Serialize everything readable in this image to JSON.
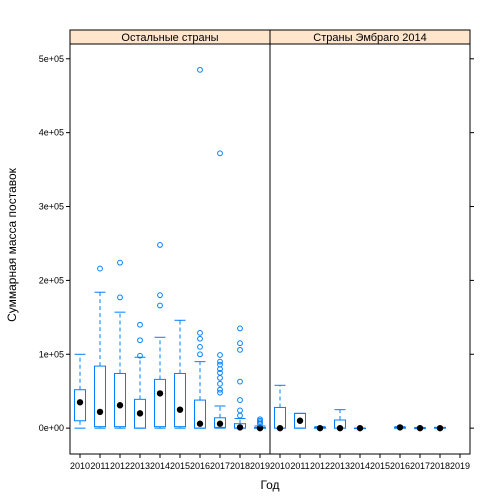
{
  "chart_data": {
    "type": "box",
    "xlabel": "Год",
    "ylabel": "Суммарная масса поставок",
    "ylim": [
      -35000,
      520000
    ],
    "yticks": [
      0,
      100000,
      200000,
      300000,
      400000,
      500000
    ],
    "ytick_labels": [
      "0e+00",
      "1e+05",
      "2e+05",
      "3e+05",
      "4e+05",
      "5e+05"
    ],
    "categories": [
      "2010",
      "2011",
      "2012",
      "2013",
      "2014",
      "2015",
      "2016",
      "2017",
      "2018",
      "2019"
    ],
    "colors": {
      "box": "#0080ff",
      "strip": "#ffe5cc",
      "median": "#000000",
      "frame": "#000000"
    },
    "panels": [
      {
        "strip": "Остальные страны",
        "boxes": [
          {
            "x": "2010",
            "lower": 0,
            "q1": 10000,
            "median": 35000,
            "q3": 52000,
            "upper": 100000,
            "outliers": []
          },
          {
            "x": "2011",
            "lower": 0,
            "q1": 2000,
            "median": 22000,
            "q3": 84000,
            "upper": 184000,
            "outliers": [
              216000
            ]
          },
          {
            "x": "2012",
            "lower": 0,
            "q1": 2000,
            "median": 31000,
            "q3": 74000,
            "upper": 157000,
            "outliers": [
              177000,
              224000
            ]
          },
          {
            "x": "2013",
            "lower": 0,
            "q1": 0,
            "median": 20000,
            "q3": 39000,
            "upper": 96000,
            "outliers": [
              98000,
              119000,
              140000
            ]
          },
          {
            "x": "2014",
            "lower": 0,
            "q1": 2000,
            "median": 47000,
            "q3": 66000,
            "upper": 123000,
            "outliers": [
              166000,
              180000,
              248000
            ]
          },
          {
            "x": "2015",
            "lower": 0,
            "q1": 2000,
            "median": 25000,
            "q3": 74000,
            "upper": 146000,
            "outliers": []
          },
          {
            "x": "2016",
            "lower": 0,
            "q1": 0,
            "median": 6000,
            "q3": 38000,
            "upper": 90000,
            "outliers": [
              100000,
              110000,
              121000,
              129000,
              485000
            ]
          },
          {
            "x": "2017",
            "lower": 0,
            "q1": 1000,
            "median": 6000,
            "q3": 14000,
            "upper": 30000,
            "outliers": [
              48000,
              52000,
              60000,
              68000,
              75000,
              80000,
              86000,
              90000,
              99000,
              372000
            ]
          },
          {
            "x": "2018",
            "lower": 0,
            "q1": 0,
            "median": 1000,
            "q3": 6000,
            "upper": 13000,
            "outliers": [
              17000,
              24000,
              38000,
              63000,
              106000,
              115000,
              135000
            ]
          },
          {
            "x": "2019",
            "lower": 0,
            "q1": 0,
            "median": 0,
            "q3": 1000,
            "upper": 3000,
            "outliers": [
              6000,
              8000,
              10000,
              12000
            ]
          }
        ]
      },
      {
        "strip": "Страны Эмбраго 2014",
        "boxes": [
          {
            "x": "2010",
            "lower": 0,
            "q1": 0,
            "median": 0,
            "q3": 28000,
            "upper": 58000,
            "outliers": []
          },
          {
            "x": "2011",
            "lower": 0,
            "q1": 0,
            "median": 10000,
            "q3": 20000,
            "upper": 20000,
            "outliers": []
          },
          {
            "x": "2012",
            "lower": 0,
            "q1": 0,
            "median": 0,
            "q3": 1000,
            "upper": 2000,
            "outliers": []
          },
          {
            "x": "2013",
            "lower": 0,
            "q1": 0,
            "median": 0,
            "q3": 11000,
            "upper": 25000,
            "outliers": []
          },
          {
            "x": "2014",
            "lower": 0,
            "q1": 0,
            "median": 0,
            "q3": 0,
            "upper": 0,
            "outliers": []
          },
          {
            "x": "2016",
            "lower": 0,
            "q1": 0,
            "median": 1000,
            "q3": 1000,
            "upper": 2000,
            "outliers": []
          },
          {
            "x": "2017",
            "lower": 0,
            "q1": 0,
            "median": 0,
            "q3": 0,
            "upper": 1000,
            "outliers": []
          },
          {
            "x": "2018",
            "lower": 0,
            "q1": 0,
            "median": 0,
            "q3": 1000,
            "upper": 1000,
            "outliers": []
          }
        ]
      }
    ]
  }
}
